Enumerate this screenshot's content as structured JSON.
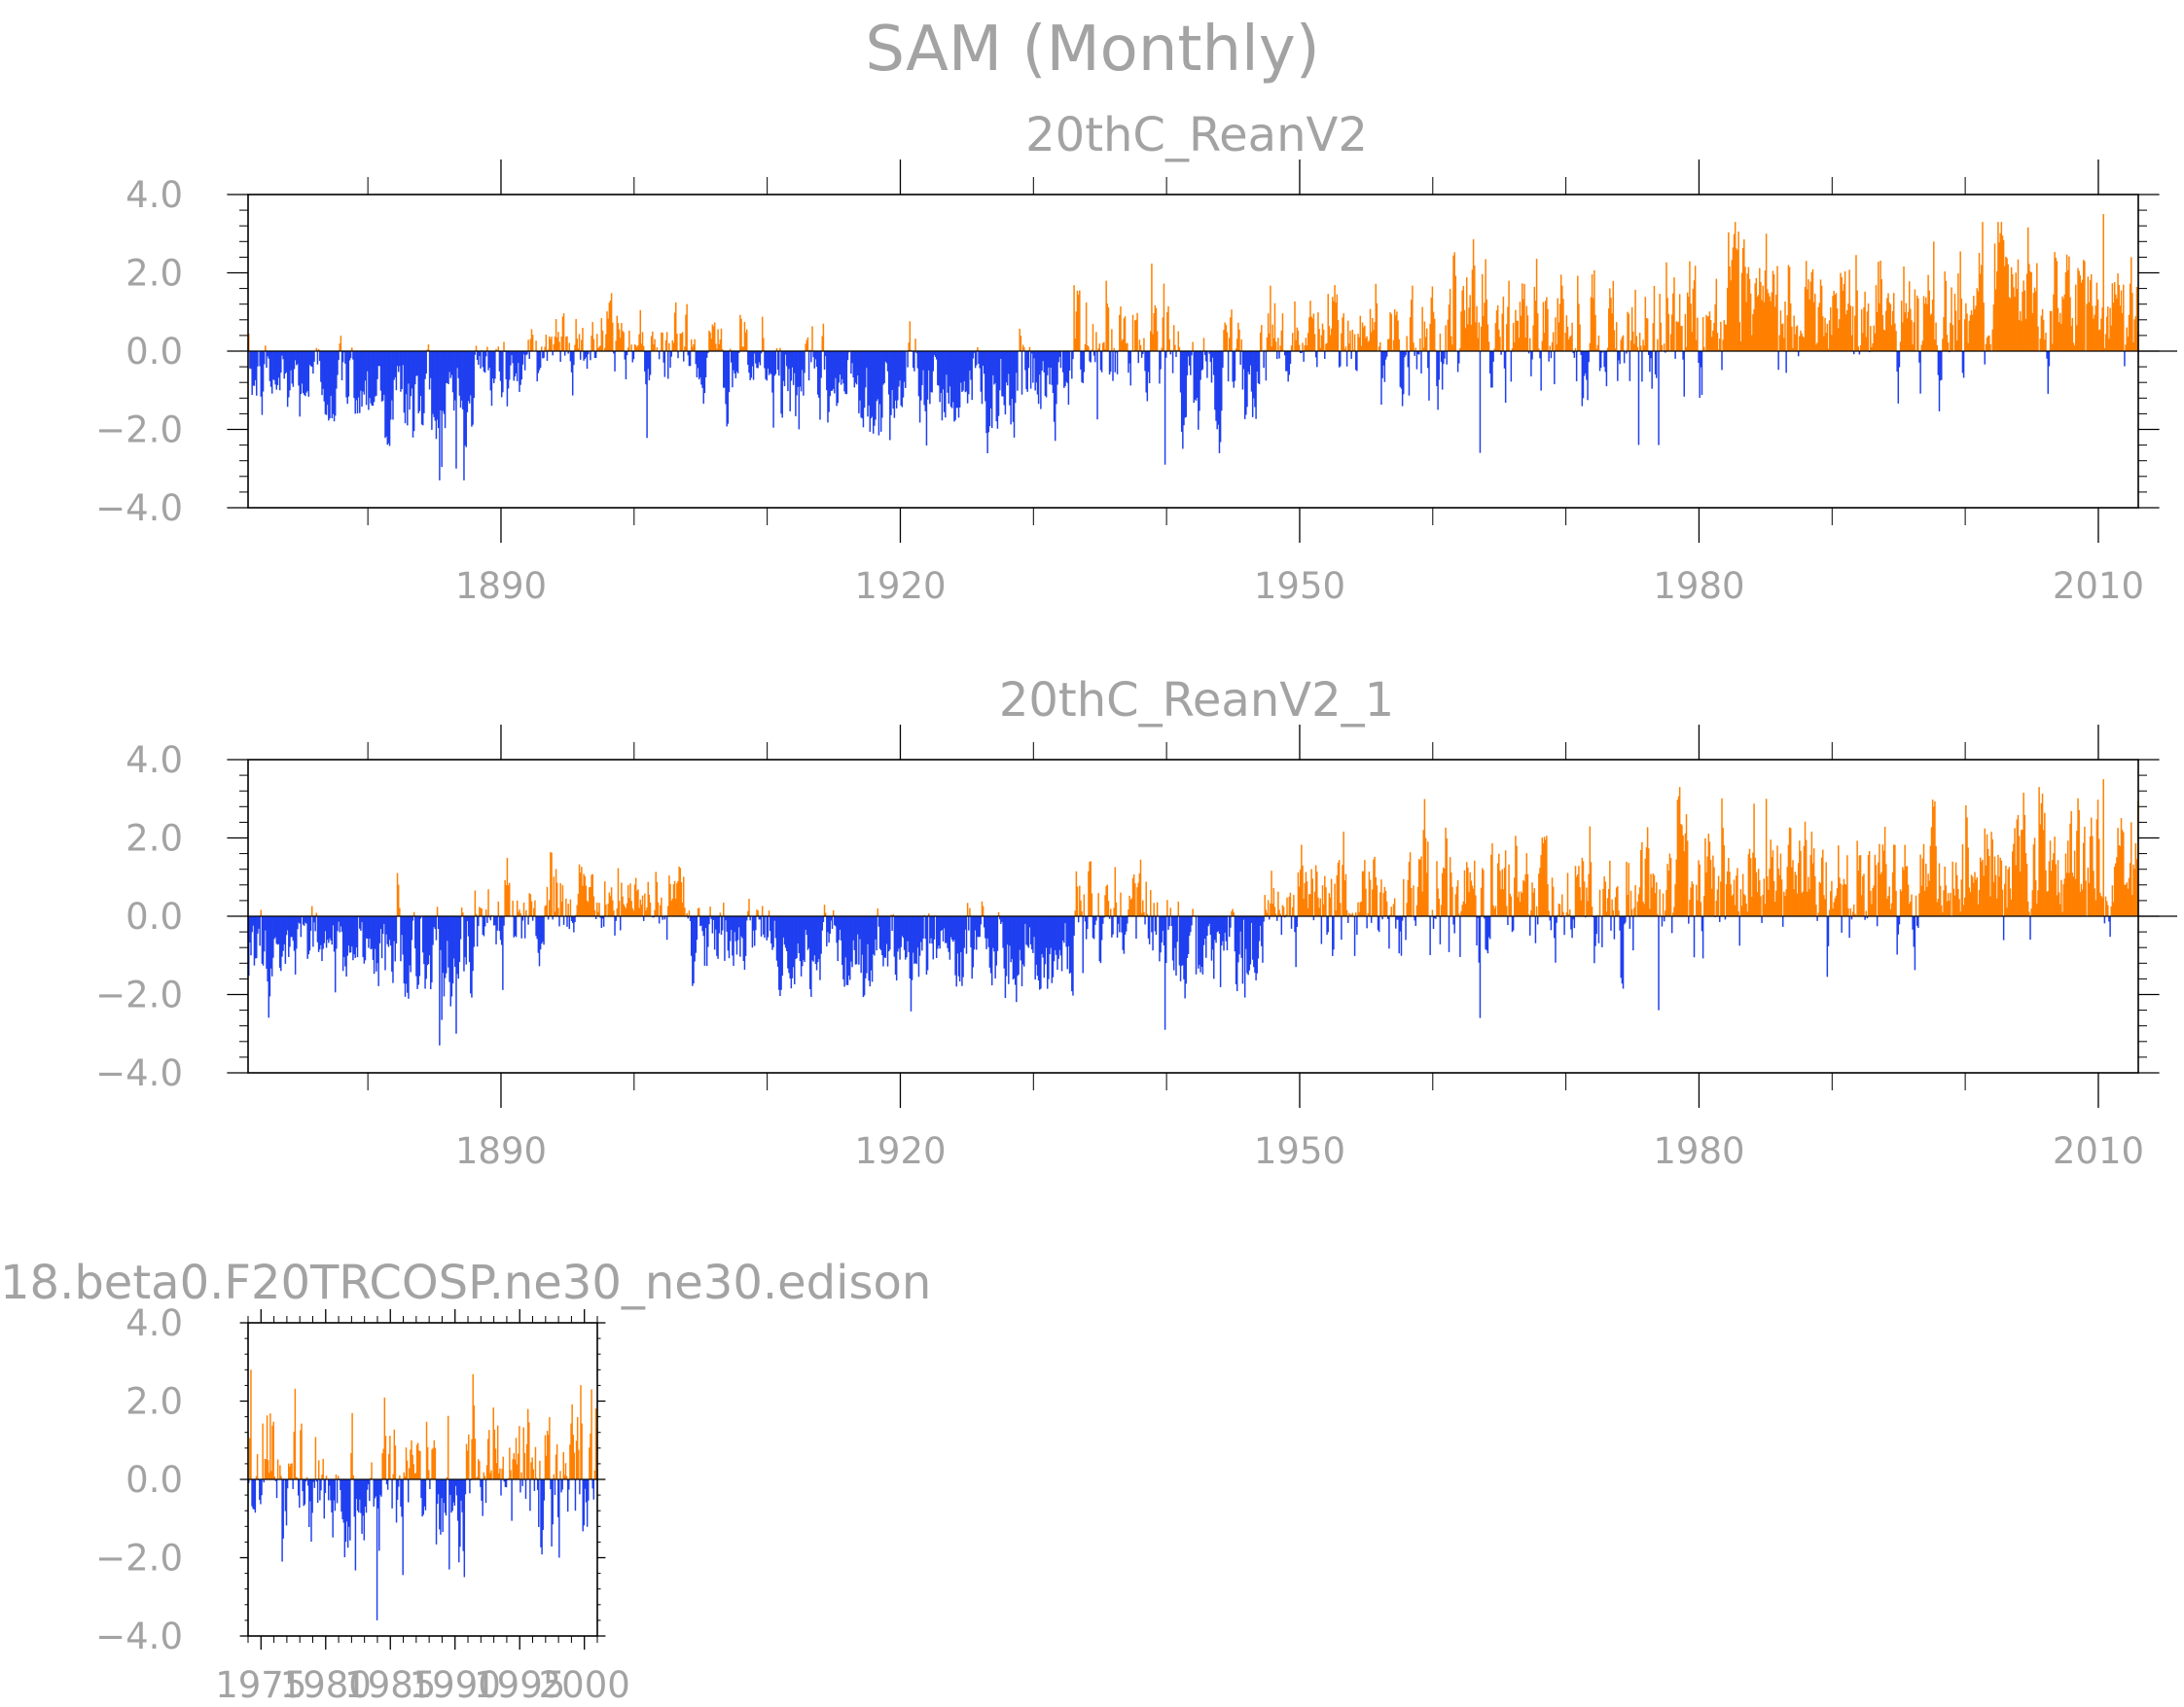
{
  "figure": {
    "title": "SAM (Monthly)",
    "colors": {
      "positive": "#ff8000",
      "negative": "#1f3ff0",
      "text": "#a3a3a3",
      "axis": "#000000"
    }
  },
  "chart_data": [
    {
      "type": "bar",
      "title": "20thC_ReanV2",
      "x_range": [
        1871,
        2013
      ],
      "ylim": [
        -4.0,
        4.0
      ],
      "y_ticks": [
        "4.0",
        "2.0",
        "0.0",
        "−2.0",
        "−4.0"
      ],
      "x_ticks": [
        "1890",
        "1920",
        "1950",
        "1980",
        "2010"
      ],
      "x_tick_values": [
        1890,
        1920,
        1950,
        1980,
        2010
      ],
      "positive_color": "#ff8000",
      "negative_color": "#1f3ff0",
      "series": [
        {
          "period": [
            1871,
            1881
          ],
          "mean": -0.8,
          "sd": 0.45
        },
        {
          "period": [
            1881,
            1888
          ],
          "mean": -1.3,
          "sd": 0.6
        },
        {
          "period": [
            1888,
            1893
          ],
          "mean": -0.5,
          "sd": 0.45
        },
        {
          "period": [
            1893,
            1904
          ],
          "mean": 0.3,
          "sd": 0.45
        },
        {
          "period": [
            1904,
            1910
          ],
          "mean": -0.3,
          "sd": 0.45
        },
        {
          "period": [
            1910,
            1933
          ],
          "mean": -0.9,
          "sd": 0.5
        },
        {
          "period": [
            1933,
            1941
          ],
          "mean": 0.0,
          "sd": 0.7
        },
        {
          "period": [
            1941,
            1947
          ],
          "mean": -0.7,
          "sd": 0.5
        },
        {
          "period": [
            1947,
            1958
          ],
          "mean": 0.35,
          "sd": 0.6
        },
        {
          "period": [
            1958,
            1978
          ],
          "mean": 0.55,
          "sd": 0.7
        },
        {
          "period": [
            1978,
            2000
          ],
          "mean": 0.95,
          "sd": 0.7
        },
        {
          "period": [
            2000,
            2013
          ],
          "mean": 1.15,
          "sd": 0.7
        }
      ],
      "extremes": [
        {
          "year": 1885.3,
          "value": -3.3
        },
        {
          "year": 1886.6,
          "value": -3.0
        },
        {
          "year": 1939.8,
          "value": -2.9
        },
        {
          "year": 1963.5,
          "value": -2.6
        },
        {
          "year": 1976.9,
          "value": -2.4
        },
        {
          "year": 1985.0,
          "value": 3.0
        },
        {
          "year": 1997.6,
          "value": 2.8
        },
        {
          "year": 2010.3,
          "value": 3.5
        },
        {
          "year": 2012.4,
          "value": 2.4
        }
      ]
    },
    {
      "type": "bar",
      "title": "20thC_ReanV2_1",
      "x_range": [
        1871,
        2013
      ],
      "ylim": [
        -4.0,
        4.0
      ],
      "y_ticks": [
        "4.0",
        "2.0",
        "0.0",
        "−2.0",
        "−4.0"
      ],
      "x_ticks": [
        "1890",
        "1920",
        "1950",
        "1980",
        "2010"
      ],
      "x_tick_values": [
        1890,
        1920,
        1950,
        1980,
        2010
      ],
      "positive_color": "#ff8000",
      "negative_color": "#1f3ff0",
      "series": [
        {
          "period": [
            1871,
            1881
          ],
          "mean": -0.8,
          "sd": 0.45
        },
        {
          "period": [
            1881,
            1888
          ],
          "mean": -1.3,
          "sd": 0.6
        },
        {
          "period": [
            1888,
            1893
          ],
          "mean": -0.5,
          "sd": 0.45
        },
        {
          "period": [
            1893,
            1904
          ],
          "mean": 0.3,
          "sd": 0.45
        },
        {
          "period": [
            1904,
            1910
          ],
          "mean": -0.3,
          "sd": 0.45
        },
        {
          "period": [
            1910,
            1933
          ],
          "mean": -0.9,
          "sd": 0.5
        },
        {
          "period": [
            1933,
            1941
          ],
          "mean": 0.0,
          "sd": 0.7
        },
        {
          "period": [
            1941,
            1947
          ],
          "mean": -0.7,
          "sd": 0.5
        },
        {
          "period": [
            1947,
            1958
          ],
          "mean": 0.35,
          "sd": 0.6
        },
        {
          "period": [
            1958,
            1978
          ],
          "mean": 0.55,
          "sd": 0.7
        },
        {
          "period": [
            1978,
            2000
          ],
          "mean": 0.95,
          "sd": 0.7
        },
        {
          "period": [
            2000,
            2013
          ],
          "mean": 1.15,
          "sd": 0.7
        }
      ],
      "extremes": [
        {
          "year": 1885.3,
          "value": -3.3
        },
        {
          "year": 1886.6,
          "value": -3.0
        },
        {
          "year": 1939.8,
          "value": -2.9
        },
        {
          "year": 1963.5,
          "value": -2.6
        },
        {
          "year": 1976.9,
          "value": -2.4
        },
        {
          "year": 1985.0,
          "value": 3.0
        },
        {
          "year": 1997.6,
          "value": 2.8
        },
        {
          "year": 2010.3,
          "value": 3.5
        },
        {
          "year": 2012.4,
          "value": 2.4
        }
      ]
    },
    {
      "type": "bar",
      "title": "18.beta0.F20TRCOSP.ne30_ne30.edison",
      "x_range": [
        1974,
        2001
      ],
      "ylim": [
        -4.0,
        4.0
      ],
      "y_ticks": [
        "4.0",
        "2.0",
        "0.0",
        "−2.0",
        "−4.0"
      ],
      "x_ticks": [
        "1975",
        "1980",
        "1985",
        "1990",
        "1995",
        "2000"
      ],
      "x_tick_values": [
        1975,
        1980,
        1985,
        1990,
        1995,
        2000
      ],
      "positive_color": "#ff8000",
      "negative_color": "#1f3ff0",
      "series": [
        {
          "period": [
            1974,
            1976
          ],
          "mean": 0.4,
          "sd": 0.8
        },
        {
          "period": [
            1976,
            1992
          ],
          "mean": -0.2,
          "sd": 0.8
        },
        {
          "period": [
            1992,
            2001
          ],
          "mean": 0.35,
          "sd": 0.8
        }
      ],
      "extremes": [
        {
          "year": 1974.2,
          "value": 2.8
        },
        {
          "year": 1976.6,
          "value": -2.1
        },
        {
          "year": 1983.9,
          "value": -3.6
        },
        {
          "year": 1989.5,
          "value": -2.3
        },
        {
          "year": 1998.0,
          "value": -2.0
        },
        {
          "year": 2000.5,
          "value": 2.3
        }
      ]
    }
  ]
}
